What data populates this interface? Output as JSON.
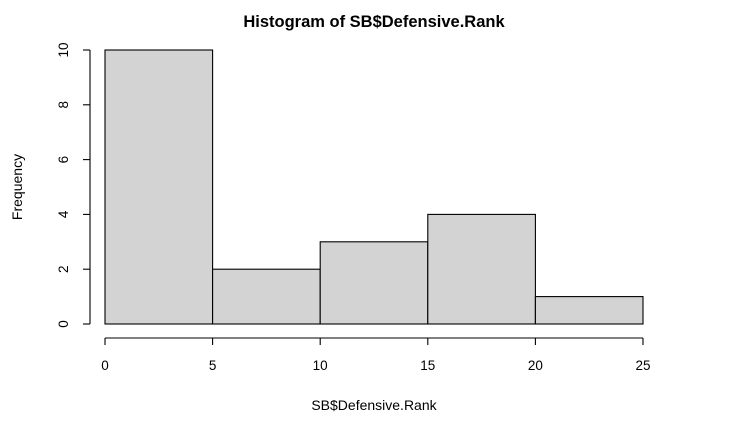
{
  "chart_data": {
    "type": "bar",
    "title": "Histogram of SB$Defensive.Rank",
    "xlabel": "SB$Defensive.Rank",
    "ylabel": "Frequency",
    "bins": [
      {
        "from": 0,
        "to": 5,
        "count": 10
      },
      {
        "from": 5,
        "to": 10,
        "count": 2
      },
      {
        "from": 10,
        "to": 15,
        "count": 3
      },
      {
        "from": 15,
        "to": 20,
        "count": 4
      },
      {
        "from": 20,
        "to": 25,
        "count": 1
      }
    ],
    "xticks": [
      0,
      5,
      10,
      15,
      20,
      25
    ],
    "yticks": [
      0,
      2,
      4,
      6,
      8,
      10
    ],
    "xlim": [
      0,
      25
    ],
    "ylim": [
      0,
      10
    ],
    "grid": false,
    "bar_color": "#d3d3d3",
    "edge_color": "#000000"
  }
}
